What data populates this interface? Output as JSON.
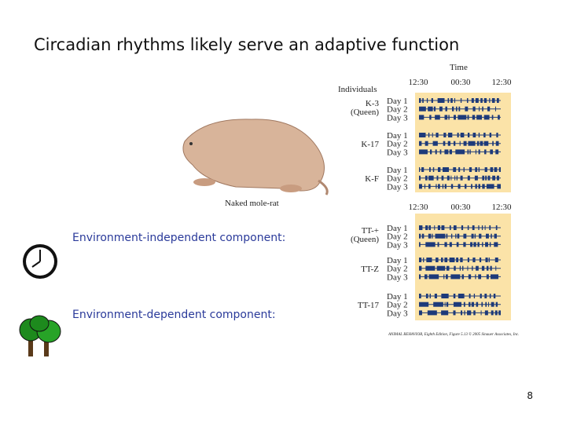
{
  "title": "Circadian rhythms likely serve an adaptive function",
  "bullets": [
    "Environment-independent component:",
    "Environment-dependent component:"
  ],
  "page_number": "8",
  "figure": {
    "time_label": "Time",
    "individuals_label": "Individuals",
    "animal_label": "Naked mole-rat",
    "caption": "ANIMAL BEHAVIOR, Eighth Edition, Figure 5.13  © 2005 Sinauer Associates, Inc.",
    "panels": [
      {
        "time_ticks": [
          "12:30",
          "00:30",
          "12:30"
        ],
        "individuals": [
          {
            "name": "K-3",
            "note": "(Queen)",
            "days": [
              "Day 1",
              "Day 2",
              "Day 3"
            ]
          },
          {
            "name": "K-17",
            "days": [
              "Day 1",
              "Day 2",
              "Day 3"
            ]
          },
          {
            "name": "K-F",
            "days": [
              "Day 1",
              "Day 2",
              "Day 3"
            ]
          }
        ]
      },
      {
        "time_ticks": [
          "12:30",
          "00:30",
          "12:30"
        ],
        "individuals": [
          {
            "name": "TT-+",
            "note": "(Queen)",
            "days": [
              "Day 1",
              "Day 2",
              "Day 3"
            ]
          },
          {
            "name": "TT-Z",
            "days": [
              "Day 1",
              "Day 2",
              "Day 3"
            ]
          },
          {
            "name": "TT-17",
            "days": [
              "Day 1",
              "Day 2",
              "Day 3"
            ]
          }
        ]
      }
    ]
  }
}
